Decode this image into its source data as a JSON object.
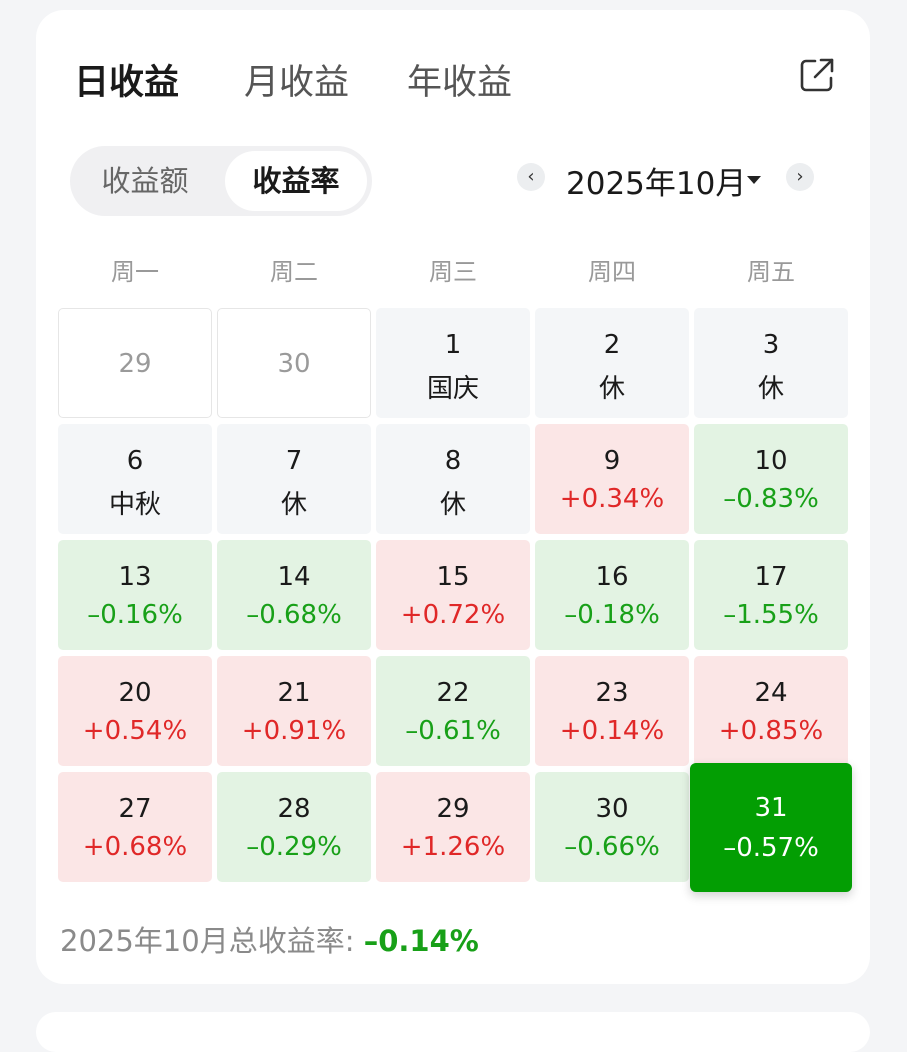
{
  "tabs": [
    {
      "label": "日收益",
      "active": true
    },
    {
      "label": "月收益",
      "active": false
    },
    {
      "label": "年收益",
      "active": false
    }
  ],
  "share_icon": "share-icon",
  "segment": {
    "options": [
      "收益额",
      "收益率"
    ],
    "selected": "收益率"
  },
  "month_nav": {
    "prev_icon": "‹",
    "label": "2025年10月",
    "next_icon": "›"
  },
  "weekdays": [
    "周一",
    "周二",
    "周三",
    "周四",
    "周五"
  ],
  "colors": {
    "accent": "#ee5514",
    "up": "#e02828",
    "down": "#18a018",
    "selected": "#039e03"
  },
  "calendar": [
    {
      "day": "29",
      "value": "",
      "type": "prev"
    },
    {
      "day": "30",
      "value": "",
      "type": "prev"
    },
    {
      "day": "1",
      "value": "国庆",
      "type": "hol"
    },
    {
      "day": "2",
      "value": "休",
      "type": "hol"
    },
    {
      "day": "3",
      "value": "休",
      "type": "hol"
    },
    {
      "day": "6",
      "value": "中秋",
      "type": "hol"
    },
    {
      "day": "7",
      "value": "休",
      "type": "hol"
    },
    {
      "day": "8",
      "value": "休",
      "type": "hol"
    },
    {
      "day": "9",
      "value": "+0.34%",
      "type": "up"
    },
    {
      "day": "10",
      "value": "–0.83%",
      "type": "down"
    },
    {
      "day": "13",
      "value": "–0.16%",
      "type": "down"
    },
    {
      "day": "14",
      "value": "–0.68%",
      "type": "down"
    },
    {
      "day": "15",
      "value": "+0.72%",
      "type": "up"
    },
    {
      "day": "16",
      "value": "–0.18%",
      "type": "down"
    },
    {
      "day": "17",
      "value": "–1.55%",
      "type": "down"
    },
    {
      "day": "20",
      "value": "+0.54%",
      "type": "up"
    },
    {
      "day": "21",
      "value": "+0.91%",
      "type": "up"
    },
    {
      "day": "22",
      "value": "–0.61%",
      "type": "down"
    },
    {
      "day": "23",
      "value": "+0.14%",
      "type": "up"
    },
    {
      "day": "24",
      "value": "+0.85%",
      "type": "up"
    },
    {
      "day": "27",
      "value": "+0.68%",
      "type": "up"
    },
    {
      "day": "28",
      "value": "–0.29%",
      "type": "down"
    },
    {
      "day": "29",
      "value": "+1.26%",
      "type": "up"
    },
    {
      "day": "30",
      "value": "–0.66%",
      "type": "down"
    },
    {
      "day": "31",
      "value": "–0.57%",
      "type": "sel"
    }
  ],
  "summary": {
    "label": "2025年10月总收益率:",
    "value": "–0.14%"
  }
}
